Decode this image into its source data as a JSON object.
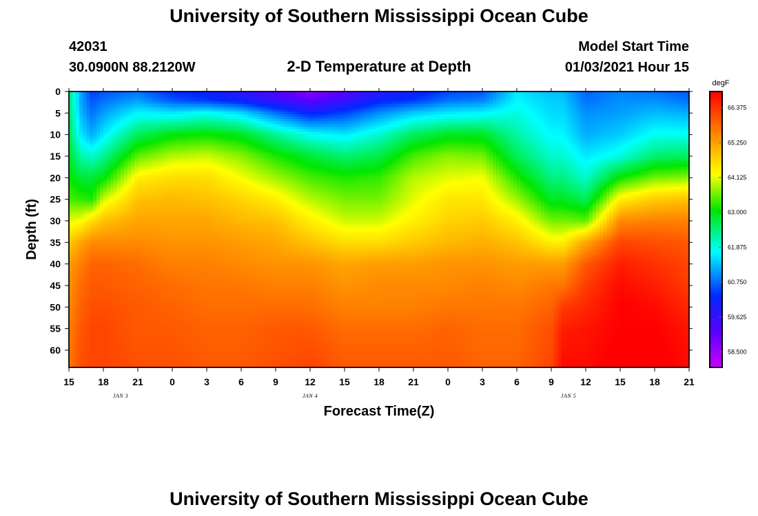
{
  "title_top": "University of Southern Mississippi Ocean Cube",
  "title_bottom": "University of Southern Mississippi Ocean Cube",
  "station": {
    "id": "42031",
    "coords": "30.0900N 88.2120W"
  },
  "plot_title": "2-D Temperature at Depth",
  "model": {
    "label": "Model Start Time",
    "time": "01/03/2021 Hour 15"
  },
  "colors": {
    "cold": "#cc00ff",
    "warm": "#ff0000",
    "frame": "#000000"
  },
  "chart_data": {
    "type": "heatmap",
    "title": "2-D Temperature at Depth",
    "xlabel": "Forecast Time(Z)",
    "ylabel": "Depth (ft)",
    "x_tick_labels": [
      "15",
      "18",
      "21",
      "0",
      "3",
      "6",
      "9",
      "12",
      "15",
      "18",
      "21",
      "0",
      "3",
      "6",
      "9",
      "12",
      "15",
      "18",
      "21"
    ],
    "x_hours": [
      0,
      3,
      6,
      9,
      12,
      15,
      18,
      21,
      24,
      27,
      30,
      33,
      36,
      39,
      42,
      45,
      48,
      51,
      54
    ],
    "date_labels": [
      {
        "text": "JAN 3",
        "hour": 4.5
      },
      {
        "text": "JAN 4",
        "hour": 21
      },
      {
        "text": "JAN 5",
        "hour": 43.5
      }
    ],
    "y_tick_labels": [
      "0",
      "5",
      "10",
      "15",
      "20",
      "25",
      "30",
      "35",
      "40",
      "45",
      "50",
      "55",
      "60"
    ],
    "y_ticks": [
      0,
      5,
      10,
      15,
      20,
      25,
      30,
      35,
      40,
      45,
      50,
      55,
      60
    ],
    "ylim": [
      0,
      64
    ],
    "xlim": [
      0,
      54
    ],
    "colorbar": {
      "unit": "degF",
      "min": 58.0,
      "max": 66.9,
      "labels": [
        "66.375",
        "65.250",
        "64.125",
        "63.000",
        "61.875",
        "60.750",
        "59.625",
        "58.500"
      ],
      "label_values": [
        66.375,
        65.25,
        64.125,
        63.0,
        61.875,
        60.75,
        59.625,
        58.5
      ]
    },
    "profile_hours": [
      0,
      1,
      2,
      3,
      6,
      9,
      12,
      15,
      18,
      21,
      24,
      27,
      30,
      33,
      36,
      39,
      42,
      43,
      45,
      48,
      51,
      54
    ],
    "profile_depths": [
      0,
      2,
      5,
      10,
      15,
      20,
      25,
      30,
      35,
      40,
      45,
      50,
      55,
      64
    ],
    "temperature_degF": [
      [
        62.5,
        62.5,
        62.6,
        62.7,
        62.9,
        63.1,
        63.4,
        64.1,
        64.8,
        65.3,
        65.4,
        65.5,
        65.6,
        65.7
      ],
      [
        61.2,
        61.2,
        61.3,
        61.6,
        62.2,
        62.8,
        63.3,
        64.2,
        65.2,
        65.6,
        65.8,
        65.9,
        66.0,
        66.1
      ],
      [
        60.4,
        60.6,
        60.8,
        61.2,
        62.0,
        62.8,
        63.2,
        64.6,
        65.5,
        65.9,
        66.0,
        66.1,
        66.2,
        66.2
      ],
      [
        60.6,
        60.8,
        61.1,
        61.6,
        62.3,
        63.0,
        64.0,
        64.9,
        65.5,
        65.9,
        66.0,
        66.1,
        66.2,
        66.2
      ],
      [
        60.8,
        61.1,
        61.7,
        62.6,
        63.5,
        64.4,
        64.9,
        65.2,
        65.5,
        65.8,
        65.9,
        66.0,
        66.0,
        66.1
      ],
      [
        60.3,
        60.6,
        61.6,
        63.0,
        63.9,
        64.6,
        65.0,
        65.2,
        65.4,
        65.6,
        65.8,
        65.9,
        66.0,
        66.1
      ],
      [
        60.2,
        60.4,
        61.8,
        63.1,
        64.0,
        64.6,
        64.9,
        65.2,
        65.4,
        65.6,
        65.7,
        65.8,
        65.9,
        66.0
      ],
      [
        59.7,
        60.1,
        61.5,
        62.9,
        63.7,
        64.2,
        64.7,
        65.0,
        65.3,
        65.5,
        65.7,
        65.8,
        65.9,
        66.0
      ],
      [
        59.3,
        59.6,
        60.8,
        62.3,
        63.2,
        63.8,
        64.4,
        64.9,
        65.2,
        65.4,
        65.6,
        65.8,
        66.0,
        66.1
      ],
      [
        58.6,
        59.1,
        60.2,
        61.8,
        62.8,
        63.4,
        63.9,
        64.4,
        64.9,
        65.4,
        65.6,
        65.8,
        66.0,
        66.2
      ],
      [
        59.2,
        59.6,
        60.5,
        61.6,
        62.5,
        63.2,
        63.6,
        64.0,
        64.6,
        65.2,
        65.4,
        65.6,
        65.8,
        66.0
      ],
      [
        59.8,
        60.2,
        61.0,
        62.0,
        62.7,
        63.3,
        63.6,
        64.0,
        64.6,
        65.3,
        65.5,
        65.6,
        65.8,
        66.0
      ],
      [
        60.1,
        60.4,
        61.4,
        62.6,
        63.4,
        63.9,
        64.1,
        64.4,
        64.8,
        65.3,
        65.5,
        65.6,
        65.8,
        66.0
      ],
      [
        60.5,
        60.8,
        61.6,
        62.9,
        63.7,
        64.1,
        64.5,
        64.7,
        65.0,
        65.4,
        65.5,
        65.7,
        65.9,
        66.0
      ],
      [
        60.6,
        60.9,
        61.7,
        62.9,
        63.6,
        64.2,
        64.5,
        64.8,
        65.1,
        65.4,
        65.6,
        65.7,
        65.8,
        65.9
      ],
      [
        61.6,
        61.7,
        61.9,
        62.2,
        62.6,
        63.2,
        63.8,
        64.4,
        64.9,
        65.3,
        65.5,
        65.7,
        65.8,
        65.9
      ],
      [
        61.3,
        61.4,
        61.5,
        61.7,
        62.0,
        62.4,
        62.9,
        63.6,
        64.4,
        65.3,
        65.7,
        65.9,
        66.1,
        66.2
      ],
      [
        61.3,
        61.4,
        61.5,
        61.7,
        62.0,
        62.4,
        62.9,
        63.6,
        64.4,
        65.3,
        65.7,
        66.3,
        66.6,
        66.8
      ],
      [
        60.7,
        60.8,
        61.0,
        61.2,
        61.6,
        62.0,
        62.6,
        63.5,
        65.2,
        66.0,
        66.3,
        66.5,
        66.7,
        66.8
      ],
      [
        60.9,
        61.0,
        61.1,
        61.4,
        61.9,
        63.1,
        64.4,
        65.5,
        66.2,
        66.6,
        66.8,
        66.9,
        66.9,
        67.0
      ],
      [
        60.8,
        61.0,
        61.3,
        61.8,
        62.5,
        63.6,
        64.8,
        65.6,
        66.1,
        66.4,
        66.6,
        66.8,
        66.9,
        67.0
      ],
      [
        60.6,
        60.8,
        61.2,
        61.8,
        62.6,
        63.7,
        64.9,
        65.6,
        66.0,
        66.2,
        66.3,
        66.5,
        66.7,
        66.8
      ]
    ]
  }
}
